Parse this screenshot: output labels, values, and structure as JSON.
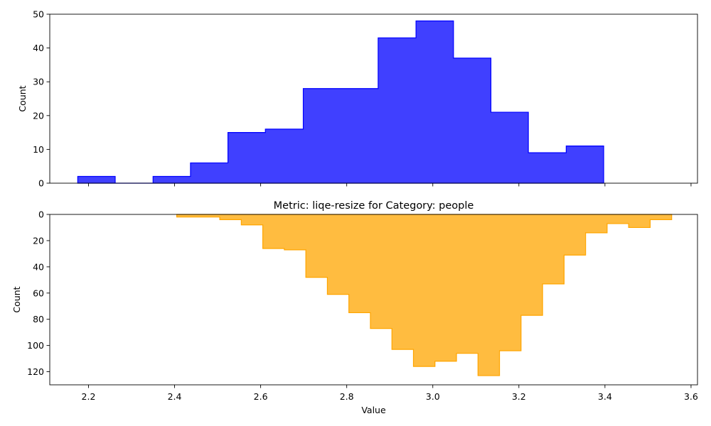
{
  "chart_data": [
    {
      "type": "histogram",
      "title": "",
      "xlabel": "",
      "ylabel": "Count",
      "xlim": [
        2.11,
        3.615
      ],
      "ylim": [
        0,
        50
      ],
      "x_ticks": [
        2.2,
        2.4,
        2.6,
        2.8,
        3.0,
        3.2,
        3.4,
        3.6
      ],
      "y_ticks": [
        0,
        10,
        20,
        30,
        40,
        50
      ],
      "x_tick_labels_visible": false,
      "grid": false,
      "series": [
        {
          "color": "#0000ff",
          "fill_opacity": 0.75,
          "bin_edges": [
            2.175,
            2.262,
            2.35,
            2.437,
            2.524,
            2.611,
            2.699,
            2.786,
            2.873,
            2.961,
            3.048,
            3.135,
            3.222,
            3.31,
            3.397
          ],
          "counts": [
            2,
            0,
            2,
            6,
            15,
            16,
            28,
            28,
            43,
            48,
            37,
            21,
            9,
            11
          ]
        }
      ]
    },
    {
      "type": "histogram",
      "title": "Metric: liqe-resize for Category: people",
      "xlabel": "Value",
      "ylabel": "Count",
      "xlim": [
        2.11,
        3.615
      ],
      "ylim": [
        130,
        0
      ],
      "y_inverted": true,
      "x_ticks": [
        2.2,
        2.4,
        2.6,
        2.8,
        3.0,
        3.2,
        3.4,
        3.6
      ],
      "x_tick_labels": [
        "2.2",
        "2.4",
        "2.6",
        "2.8",
        "3.0",
        "3.2",
        "3.4",
        "3.6"
      ],
      "y_ticks": [
        0,
        20,
        40,
        60,
        80,
        100,
        120
      ],
      "grid": false,
      "series": [
        {
          "color": "#ffa500",
          "fill_opacity": 0.75,
          "bin_edges": [
            2.405,
            2.455,
            2.505,
            2.555,
            2.605,
            2.655,
            2.705,
            2.755,
            2.805,
            2.855,
            2.905,
            2.955,
            3.005,
            3.055,
            3.105,
            3.155,
            3.205,
            3.255,
            3.305,
            3.355,
            3.405,
            3.455,
            3.505,
            3.555
          ],
          "counts": [
            2,
            2,
            4,
            8,
            26,
            27,
            48,
            61,
            75,
            87,
            103,
            116,
            112,
            106,
            123,
            104,
            77,
            53,
            31,
            14,
            7,
            10,
            4
          ]
        }
      ]
    }
  ]
}
